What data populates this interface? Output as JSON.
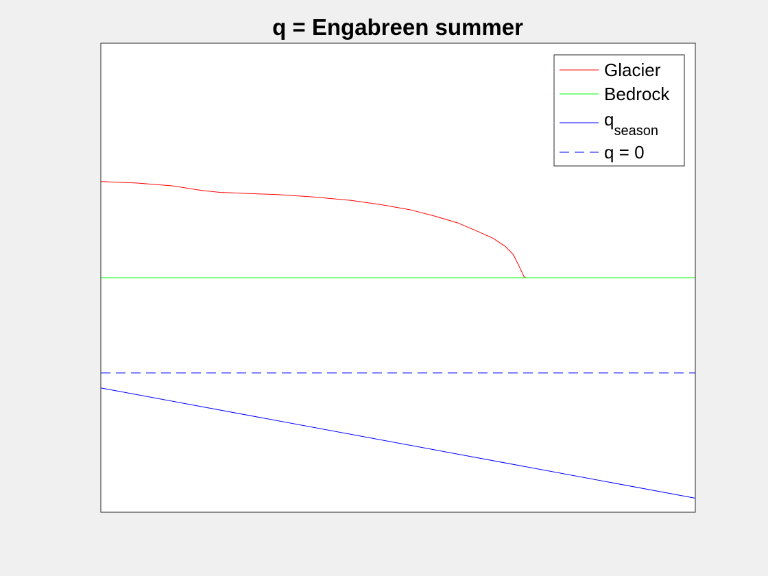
{
  "chart_data": {
    "type": "line",
    "title": "q = Engabreen summer",
    "xlabel": "",
    "ylabel": "",
    "xlim": [
      0,
      1
    ],
    "ylim": [
      0,
      1
    ],
    "axis_ticks": "off",
    "grid": "off",
    "legend": {
      "placement": "top-right"
    },
    "series": [
      {
        "key": "glacier",
        "name": "Glacier",
        "color": "#ff0000",
        "style": "solid",
        "x": [
          0,
          0.06,
          0.12,
          0.17,
          0.2,
          0.24,
          0.3,
          0.36,
          0.42,
          0.47,
          0.52,
          0.56,
          0.6,
          0.63,
          0.66,
          0.68,
          0.694,
          0.703,
          0.712,
          0.715
        ],
        "y": [
          0.705,
          0.702,
          0.696,
          0.686,
          0.682,
          0.68,
          0.677,
          0.672,
          0.665,
          0.656,
          0.645,
          0.632,
          0.617,
          0.601,
          0.584,
          0.567,
          0.549,
          0.526,
          0.502,
          0.5
        ]
      },
      {
        "key": "bedrock",
        "name": "Bedrock",
        "color": "#00ff00",
        "style": "solid",
        "x": [
          0,
          1
        ],
        "y": [
          0.5,
          0.5
        ]
      },
      {
        "key": "qseason",
        "name": "q",
        "name_subscript": "season",
        "color": "#0000ff",
        "style": "solid",
        "x": [
          0,
          1
        ],
        "y": [
          0.265,
          0.03
        ]
      },
      {
        "key": "qzero",
        "name": "q = 0",
        "color": "#0000ff",
        "style": "dashed",
        "x": [
          0,
          1
        ],
        "y": [
          0.297,
          0.297
        ]
      }
    ]
  }
}
